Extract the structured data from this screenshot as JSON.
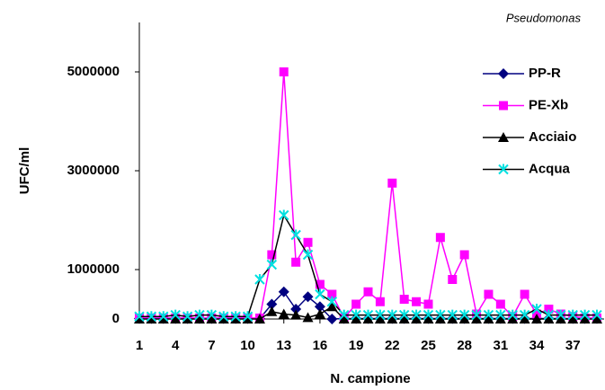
{
  "chart_data": {
    "type": "line",
    "title": "Pseudomonas",
    "x_label": "N. campione",
    "y_label": "UFC/ml",
    "x": [
      1,
      2,
      3,
      4,
      5,
      6,
      7,
      8,
      9,
      10,
      11,
      12,
      13,
      14,
      15,
      16,
      17,
      18,
      19,
      20,
      21,
      22,
      23,
      24,
      25,
      26,
      27,
      28,
      29,
      30,
      31,
      32,
      33,
      34,
      35,
      36,
      37,
      38,
      39
    ],
    "xlim": [
      1,
      39
    ],
    "xticks": [
      1,
      4,
      7,
      10,
      13,
      16,
      19,
      22,
      25,
      28,
      31,
      34,
      37
    ],
    "ylim": [
      0,
      6000000
    ],
    "yticks": [
      0,
      1000000,
      3000000,
      5000000
    ],
    "series": [
      {
        "name": "PP-R",
        "color": "#000080",
        "marker": "diamond",
        "marker_color": "#000080",
        "values": [
          10000,
          10000,
          10000,
          10000,
          10000,
          10000,
          10000,
          10000,
          10000,
          10000,
          10000,
          300000,
          550000,
          200000,
          450000,
          250000,
          0,
          10000,
          10000,
          10000,
          10000,
          10000,
          10000,
          10000,
          10000,
          10000,
          10000,
          10000,
          10000,
          10000,
          10000,
          10000,
          10000,
          10000,
          10000,
          10000,
          10000,
          10000,
          10000
        ]
      },
      {
        "name": "PE-Xb",
        "color": "#ff00ff",
        "marker": "square",
        "marker_color": "#ff00ff",
        "values": [
          20000,
          20000,
          20000,
          20000,
          20000,
          20000,
          20000,
          20000,
          20000,
          20000,
          20000,
          1300000,
          5000000,
          1150000,
          1550000,
          700000,
          500000,
          20000,
          300000,
          550000,
          350000,
          2750000,
          400000,
          350000,
          300000,
          1650000,
          800000,
          1300000,
          100000,
          500000,
          300000,
          50000,
          500000,
          100000,
          200000,
          100000,
          50000,
          20000,
          20000
        ]
      },
      {
        "name": "Acciaio",
        "color": "#000000",
        "marker": "triangle",
        "marker_color": "#000000",
        "values": [
          0,
          0,
          0,
          0,
          0,
          0,
          0,
          0,
          0,
          0,
          0,
          150000,
          100000,
          80000,
          30000,
          100000,
          250000,
          0,
          0,
          0,
          0,
          0,
          0,
          0,
          0,
          0,
          0,
          0,
          0,
          0,
          0,
          0,
          0,
          0,
          0,
          0,
          0,
          0,
          0
        ]
      },
      {
        "name": "Acqua",
        "color": "#000000",
        "marker": "star",
        "marker_color": "#00e0e0",
        "values": [
          50000,
          50000,
          50000,
          80000,
          50000,
          80000,
          80000,
          50000,
          50000,
          50000,
          800000,
          1100000,
          2100000,
          1700000,
          1300000,
          500000,
          350000,
          80000,
          80000,
          80000,
          80000,
          80000,
          80000,
          80000,
          80000,
          80000,
          80000,
          80000,
          80000,
          80000,
          80000,
          80000,
          80000,
          200000,
          80000,
          80000,
          80000,
          80000,
          80000
        ]
      }
    ]
  }
}
